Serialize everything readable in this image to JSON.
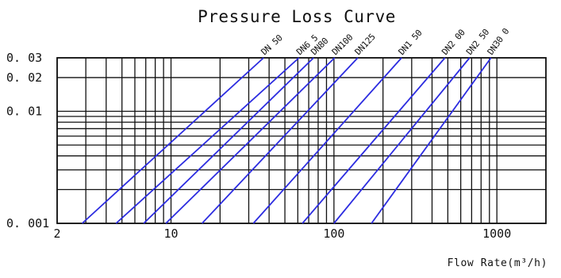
{
  "chart_data": {
    "type": "line",
    "title": "Pressure Loss Curve",
    "xlabel": "Flow Rate(m³/h)",
    "ylabel": "",
    "xscale": "log",
    "yscale": "log",
    "xlim": [
      2,
      2000
    ],
    "ylim": [
      0.001,
      0.03
    ],
    "grid": true,
    "x_grid_values": [
      2,
      3,
      4,
      5,
      6,
      7,
      8,
      9,
      10,
      20,
      30,
      40,
      50,
      60,
      70,
      80,
      90,
      100,
      200,
      300,
      400,
      500,
      600,
      700,
      800,
      900,
      1000
    ],
    "y_grid_values": [
      0.001,
      0.002,
      0.003,
      0.004,
      0.005,
      0.006,
      0.007,
      0.008,
      0.009,
      0.01,
      0.02,
      0.03
    ],
    "x_tick_labels": [
      {
        "value": 2,
        "label": "2"
      },
      {
        "value": 10,
        "label": "10"
      },
      {
        "value": 100,
        "label": "100"
      },
      {
        "value": 1000,
        "label": "1000"
      }
    ],
    "y_tick_labels": [
      {
        "value": 0.03,
        "label": "0. 03"
      },
      {
        "value": 0.02,
        "label": "0. 02"
      },
      {
        "value": 0.01,
        "label": "0. 01"
      },
      {
        "value": 0.001,
        "label": "0. 001"
      }
    ],
    "line_color": "#2c2ce0",
    "grid_color": "#111111",
    "series": [
      {
        "name": "DN50",
        "label": "DN 50",
        "x": [
          2.85,
          37
        ],
        "y": [
          0.001,
          0.03
        ]
      },
      {
        "name": "DN65",
        "label": "DN6 5",
        "x": [
          4.6,
          61
        ],
        "y": [
          0.001,
          0.03
        ]
      },
      {
        "name": "DN80",
        "label": "DN80",
        "x": [
          6.8,
          75
        ],
        "y": [
          0.001,
          0.03
        ]
      },
      {
        "name": "DN100",
        "label": "DN100",
        "x": [
          9.3,
          101
        ],
        "y": [
          0.001,
          0.03
        ]
      },
      {
        "name": "DN125",
        "label": "DN125",
        "x": [
          15.5,
          140
        ],
        "y": [
          0.001,
          0.03
        ]
      },
      {
        "name": "DN150",
        "label": "DN1 50",
        "x": [
          32,
          260
        ],
        "y": [
          0.001,
          0.03
        ]
      },
      {
        "name": "DN200",
        "label": "DN2 00",
        "x": [
          64,
          480
        ],
        "y": [
          0.001,
          0.03
        ]
      },
      {
        "name": "DN250",
        "label": "DN2 50",
        "x": [
          100,
          680
        ],
        "y": [
          0.001,
          0.03
        ]
      },
      {
        "name": "DN300",
        "label": "DN30 0",
        "x": [
          170,
          920
        ],
        "y": [
          0.001,
          0.03
        ]
      }
    ]
  }
}
